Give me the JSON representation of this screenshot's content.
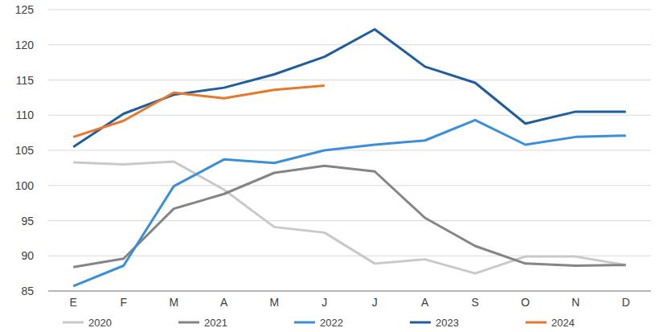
{
  "chart_data": {
    "type": "line",
    "categories": [
      "E",
      "F",
      "M",
      "A",
      "M",
      "J",
      "J",
      "A",
      "S",
      "O",
      "N",
      "D"
    ],
    "series": [
      {
        "name": "2020",
        "color": "#c9c9c9",
        "values": [
          103.3,
          103.0,
          103.4,
          99.4,
          94.1,
          93.3,
          88.9,
          89.5,
          87.5,
          89.9,
          89.9,
          88.7
        ]
      },
      {
        "name": "2021",
        "color": "#858585",
        "values": [
          88.4,
          89.6,
          96.7,
          98.8,
          101.8,
          102.8,
          102.0,
          95.4,
          91.4,
          88.9,
          88.6,
          88.7
        ]
      },
      {
        "name": "2022",
        "color": "#3b8fd8",
        "values": [
          85.7,
          88.6,
          99.9,
          103.7,
          103.2,
          105.0,
          105.8,
          106.4,
          109.3,
          105.8,
          106.9,
          107.1
        ]
      },
      {
        "name": "2023",
        "color": "#1f5d9f",
        "values": [
          105.5,
          110.2,
          112.9,
          113.9,
          115.8,
          118.3,
          122.2,
          116.9,
          114.6,
          108.8,
          110.5,
          110.5
        ]
      },
      {
        "name": "2024",
        "color": "#e8772a",
        "values": [
          106.9,
          109.2,
          113.2,
          112.4,
          113.6,
          114.2,
          null,
          null,
          null,
          null,
          null,
          null
        ]
      }
    ],
    "ylim": [
      85,
      125
    ],
    "yticks": [
      85,
      90,
      95,
      100,
      105,
      110,
      115,
      120,
      125
    ],
    "grid": true,
    "legend": "bottom"
  }
}
